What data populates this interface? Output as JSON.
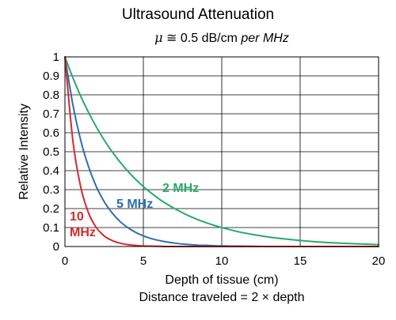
{
  "chart_data": {
    "type": "line",
    "title": "Ultrasound Attenuation",
    "subtitle": {
      "symbol": "μ",
      "relation": "≅",
      "value": "0.5 dB/cm",
      "suffix": "per MHz"
    },
    "xlabel": "Depth of tissue (cm)",
    "xlabel_note": "Distance traveled = 2 × depth",
    "ylabel": "Relative Intensity",
    "xlim": [
      0,
      20
    ],
    "ylim": [
      0,
      1
    ],
    "xticks": [
      "0",
      "5",
      "10",
      "15",
      "20"
    ],
    "yticks": [
      "0",
      "0.1",
      "0.2",
      "0.3",
      "0.4",
      "0.5",
      "0.6",
      "0.7",
      "0.8",
      "0.9",
      "1"
    ],
    "grid": true,
    "x": [
      0,
      0.5,
      1,
      1.5,
      2,
      2.5,
      3,
      3.5,
      4,
      4.5,
      5,
      5.5,
      6,
      6.5,
      7,
      7.5,
      8,
      8.5,
      9,
      9.5,
      10,
      11,
      12,
      13,
      14,
      15,
      16,
      17,
      18,
      19,
      20
    ],
    "series": [
      {
        "name": "2 MHz",
        "color": "#2aa86b",
        "values": [
          1,
          0.891,
          0.794,
          0.708,
          0.631,
          0.562,
          0.501,
          0.447,
          0.398,
          0.355,
          0.316,
          0.282,
          0.251,
          0.224,
          0.2,
          0.178,
          0.158,
          0.141,
          0.126,
          0.112,
          0.1,
          0.079,
          0.063,
          0.05,
          0.04,
          0.032,
          0.025,
          0.02,
          0.016,
          0.013,
          0.01
        ]
      },
      {
        "name": "5 MHz",
        "color": "#2f6db0",
        "values": [
          1,
          0.75,
          0.562,
          0.422,
          0.316,
          0.237,
          0.178,
          0.133,
          0.1,
          0.075,
          0.056,
          0.042,
          0.032,
          0.024,
          0.018,
          0.013,
          0.01,
          0.007,
          0.006,
          0.004,
          0.003,
          0.002,
          0.001,
          0,
          0,
          0,
          0,
          0,
          0,
          0,
          0
        ]
      },
      {
        "name": "10 MHz",
        "color": "#d42a2a",
        "values": [
          1,
          0.562,
          0.316,
          0.178,
          0.1,
          0.056,
          0.032,
          0.018,
          0.01,
          0.006,
          0.003,
          0.002,
          0.001,
          0,
          0,
          0,
          0,
          0,
          0,
          0,
          0,
          0,
          0,
          0,
          0,
          0,
          0,
          0,
          0,
          0,
          0
        ]
      }
    ],
    "annotations": [
      {
        "text": "2 MHz",
        "series": "2 MHz"
      },
      {
        "text": "5 MHz",
        "series": "5 MHz"
      },
      {
        "text": [
          "10",
          "MHz"
        ],
        "series": "10 MHz"
      }
    ]
  }
}
